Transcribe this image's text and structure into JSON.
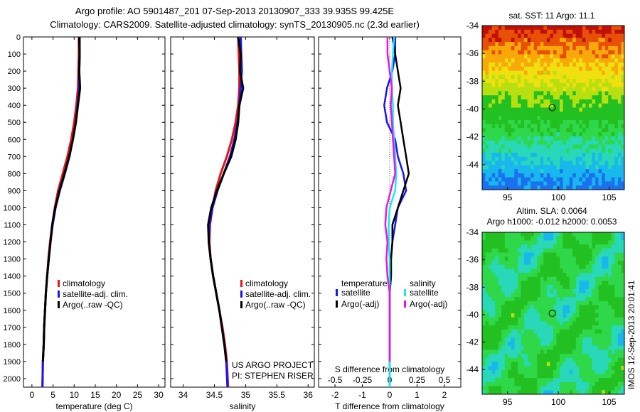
{
  "header": {
    "line1": "Argo profile: AO 5901487_201 07-Sep-2013 20130907_333 39.935S 99.425E",
    "line2": "Climatology: CARS2009. Satellite-adjusted climatology: synTS_20130905.nc (2.3d earlier)"
  },
  "colors": {
    "climatology": "#ee1111",
    "satellite": "#1515ee",
    "argo": "#000000",
    "sat_salinity": "#11eeee",
    "argo_salinity": "#ee11ee"
  },
  "chart_data": [
    {
      "type": "line",
      "panel": "temperature",
      "xlabel": "temperature (deg C)",
      "xlim": [
        -2,
        31.5
      ],
      "xticks": [
        0,
        5,
        10,
        15,
        20,
        25,
        30
      ],
      "ylim": [
        0,
        2050
      ],
      "yticks": [
        0,
        100,
        200,
        300,
        400,
        500,
        600,
        700,
        800,
        900,
        1000,
        1100,
        1200,
        1300,
        1400,
        1500,
        1600,
        1700,
        1800,
        1900,
        2000
      ],
      "legend": [
        "climatology",
        "satellite-adj. clim.",
        "Argo(..raw -QC)"
      ],
      "series": [
        {
          "name": "climatology",
          "x": [
            11.1,
            11.1,
            11.0,
            10.9,
            10.5,
            10.0,
            9.3,
            8.4,
            7.3,
            6.2,
            5.4,
            4.8,
            4.3,
            3.9,
            3.6,
            3.3,
            3.1,
            2.9,
            2.8,
            2.6,
            2.5
          ],
          "y": [
            0,
            100,
            200,
            300,
            400,
            500,
            600,
            700,
            800,
            900,
            1000,
            1100,
            1200,
            1300,
            1400,
            1500,
            1600,
            1700,
            1800,
            1900,
            2050
          ]
        },
        {
          "name": "satellite-adj. clim.",
          "x": [
            11.3,
            11.3,
            11.2,
            11.2,
            10.8,
            10.4,
            9.7,
            8.9,
            7.8,
            6.6,
            5.6,
            4.9,
            4.4,
            4.0,
            3.6,
            3.3,
            3.1,
            2.9,
            2.8,
            2.6,
            2.5
          ],
          "y": [
            0,
            100,
            200,
            300,
            400,
            500,
            600,
            700,
            800,
            900,
            1000,
            1100,
            1200,
            1300,
            1400,
            1500,
            1600,
            1700,
            1800,
            1900,
            2050
          ]
        },
        {
          "name": "Argo(..raw -QC)",
          "x": [
            11.2,
            11.3,
            11.2,
            11.4,
            10.9,
            10.4,
            9.7,
            8.8,
            7.7,
            6.5,
            5.5,
            4.8,
            4.4,
            4.0,
            3.6,
            3.3,
            3.1,
            2.9,
            2.8,
            2.6
          ],
          "y": [
            0,
            100,
            200,
            300,
            400,
            500,
            600,
            700,
            800,
            900,
            1000,
            1100,
            1200,
            1300,
            1400,
            1500,
            1600,
            1700,
            1800,
            1900
          ]
        }
      ]
    },
    {
      "type": "line",
      "panel": "salinity",
      "xlabel": "salinity",
      "xlim": [
        33.8,
        36.1
      ],
      "xticks": [
        34,
        34.5,
        35,
        35.5,
        36
      ],
      "ylim": [
        0,
        2050
      ],
      "legend": [
        "climatology",
        "satellite-adj. clim.",
        "Argo(..raw -QC)"
      ],
      "annotations": [
        "US ARGO PROJECT",
        "PI: STEPHEN RISER"
      ],
      "series": [
        {
          "name": "climatology",
          "x": [
            34.88,
            34.89,
            34.9,
            34.9,
            34.88,
            34.84,
            34.78,
            34.7,
            34.6,
            34.52,
            34.47,
            34.43,
            34.42,
            34.44,
            34.48,
            34.53,
            34.58,
            34.63,
            34.67,
            34.7,
            34.72
          ],
          "y": [
            0,
            100,
            200,
            300,
            400,
            500,
            600,
            700,
            800,
            900,
            1000,
            1100,
            1200,
            1300,
            1400,
            1500,
            1600,
            1700,
            1800,
            1900,
            2050
          ]
        },
        {
          "name": "satellite-adj. clim.",
          "x": [
            34.92,
            34.93,
            34.94,
            34.92,
            34.9,
            34.87,
            34.82,
            34.75,
            34.65,
            34.55,
            34.47,
            34.42,
            34.41,
            34.44,
            34.48,
            34.53,
            34.58,
            34.62,
            34.66,
            34.69,
            34.71
          ],
          "y": [
            0,
            100,
            200,
            300,
            400,
            500,
            600,
            700,
            800,
            900,
            1000,
            1100,
            1200,
            1300,
            1400,
            1500,
            1600,
            1700,
            1800,
            1900,
            2050
          ]
        },
        {
          "name": "Argo(..raw -QC)",
          "x": [
            34.88,
            34.92,
            34.91,
            34.96,
            34.9,
            34.88,
            34.84,
            34.77,
            34.65,
            34.54,
            34.45,
            34.4,
            34.41,
            34.44,
            34.48,
            34.53,
            34.58,
            34.62,
            34.66,
            34.69
          ],
          "y": [
            0,
            100,
            200,
            300,
            400,
            500,
            600,
            700,
            800,
            900,
            1000,
            1100,
            1200,
            1300,
            1400,
            1500,
            1600,
            1700,
            1800,
            1900
          ]
        }
      ]
    },
    {
      "type": "line",
      "panel": "differences",
      "xlabel": "T difference from climatology",
      "xlabel2": "S difference from climatology",
      "xlim": [
        -2.6,
        2.6
      ],
      "xticks": [
        -2,
        -1,
        0,
        1,
        2
      ],
      "xticks2": [
        "-0.5",
        "-0.25",
        "0",
        "0.25",
        "0.5"
      ],
      "ylim": [
        0,
        2050
      ],
      "legend_groups": {
        "temperature": [
          "satellite",
          "Argo(-adj)"
        ],
        "salinity": [
          "satellite",
          "Argo(-adj)"
        ]
      },
      "series": [
        {
          "name": "temperature satellite",
          "x": [
            0.2,
            0.2,
            0.1,
            -0.1,
            -0.2,
            -0.1,
            0.2,
            0.3,
            0.5,
            0.6,
            0.3,
            0.2,
            0.1,
            0.05,
            0.05,
            0.0,
            0.0,
            0.0,
            0.0,
            0.0,
            0.0
          ],
          "y": [
            0,
            100,
            200,
            300,
            400,
            500,
            600,
            700,
            800,
            900,
            1000,
            1100,
            1200,
            1300,
            1400,
            1500,
            1600,
            1700,
            1800,
            1900,
            2050
          ]
        },
        {
          "name": "temperature Argo(-adj)",
          "x": [
            0.1,
            0.2,
            0.3,
            0.4,
            0.3,
            0.4,
            0.5,
            0.6,
            0.7,
            0.5,
            0.3,
            0.1,
            0.1,
            0.05,
            0.05,
            0.0,
            0.0,
            0.0,
            0.0,
            0.0
          ],
          "y": [
            0,
            100,
            200,
            300,
            400,
            500,
            600,
            700,
            800,
            900,
            1000,
            1100,
            1200,
            1300,
            1400,
            1500,
            1600,
            1700,
            1800,
            1900
          ]
        },
        {
          "name": "salinity satellite",
          "x": [
            0.04,
            0.03,
            0.02,
            0.02,
            0.03,
            0.03,
            0.04,
            0.05,
            0.06,
            0.05,
            0.0,
            -0.01,
            -0.01,
            0.0,
            0.0,
            0.0,
            0.0,
            0.0,
            0.0,
            0.0,
            0.0
          ],
          "y": [
            0,
            100,
            200,
            300,
            400,
            500,
            600,
            700,
            800,
            900,
            1000,
            1100,
            1200,
            1300,
            1400,
            1500,
            1600,
            1700,
            1800,
            1900,
            2050
          ]
        },
        {
          "name": "salinity Argo(-adj)",
          "x": [
            -0.02,
            -0.02,
            0.0,
            0.02,
            0.01,
            0.02,
            0.03,
            0.04,
            0.05,
            0.01,
            -0.03,
            -0.04,
            -0.02,
            -0.03,
            -0.02,
            0.0,
            0.0,
            0.0,
            0.0,
            0.0
          ],
          "y": [
            0,
            100,
            200,
            300,
            400,
            500,
            600,
            700,
            800,
            900,
            1000,
            1100,
            1200,
            1300,
            1400,
            1500,
            1600,
            1700,
            1800,
            1900
          ]
        }
      ]
    },
    {
      "type": "heatmap",
      "panel": "sst-map",
      "title": "sat. SST: 11 Argo: 11.1",
      "xlim": [
        92.5,
        106.5
      ],
      "ylim": [
        -45.8,
        -34
      ],
      "xticks": [
        95,
        100,
        105
      ],
      "yticks": [
        -34,
        -36,
        -38,
        -40,
        -42,
        -44
      ],
      "marker": {
        "lon": 99.4,
        "lat": -39.9
      }
    },
    {
      "type": "heatmap",
      "panel": "sla-map",
      "title": "Altim. SLA: 0.0064",
      "subtitle": "Argo h1000: -0.012 h2000: 0.0053",
      "xlim": [
        92.5,
        106.5
      ],
      "ylim": [
        -45.8,
        -34
      ],
      "xticks": [
        95,
        100,
        105
      ],
      "yticks": [
        -34,
        -36,
        -38,
        -40,
        -42,
        -44
      ],
      "marker": {
        "lon": 99.4,
        "lat": -39.9
      }
    }
  ],
  "footer": {
    "stamp": "IMOS 12-Sep-2013 20:01:41"
  }
}
